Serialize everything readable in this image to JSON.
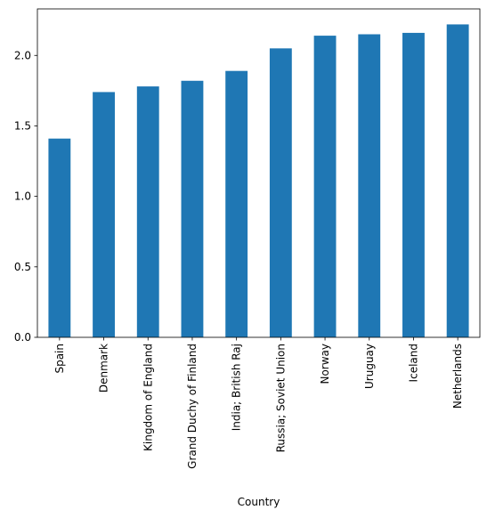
{
  "chart_data": {
    "type": "bar",
    "title": "",
    "xlabel": "Country",
    "ylabel": "",
    "categories": [
      "Spain",
      "Denmark",
      "Kingdom of England",
      "Grand Duchy of Finland",
      "India; British Raj",
      "Russia; Soviet Union",
      "Norway",
      "Uruguay",
      "Iceland",
      "Netherlands"
    ],
    "values": [
      1.41,
      1.74,
      1.78,
      1.82,
      1.89,
      2.05,
      2.14,
      2.15,
      2.16,
      2.22
    ],
    "ylim": [
      0,
      2.33
    ],
    "yticks": [
      0.0,
      0.5,
      1.0,
      1.5,
      2.0
    ],
    "ytick_labels": [
      "0.0",
      "0.5",
      "1.0",
      "1.5",
      "2.0"
    ],
    "grid": false,
    "legend": "none",
    "bar_color": "#1f77b4"
  }
}
